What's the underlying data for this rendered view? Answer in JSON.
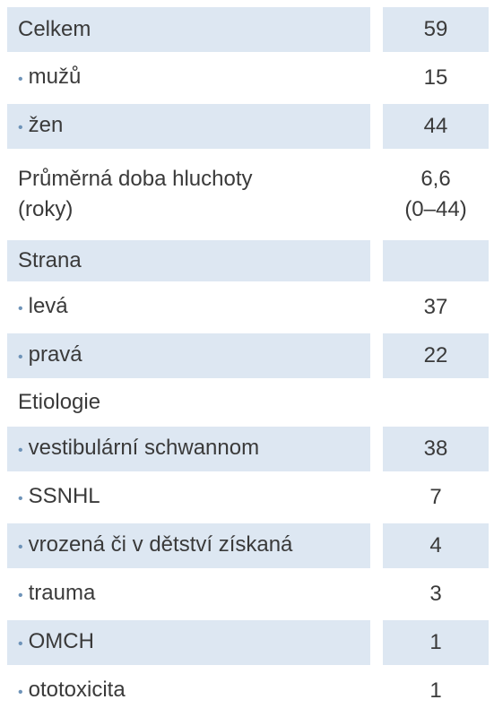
{
  "table": {
    "rows": [
      {
        "label": "Celkem",
        "value": "59",
        "shaded": true,
        "bullet": false
      },
      {
        "label": "mužů",
        "value": "15",
        "shaded": false,
        "bullet": true
      },
      {
        "label": "žen",
        "value": "44",
        "shaded": true,
        "bullet": true
      },
      {
        "label": "Průměrná doba hluchoty\n(roky)",
        "value": "6,6\n(0–44)",
        "shaded": false,
        "bullet": false
      },
      {
        "label": "Strana",
        "value": null,
        "shaded": true,
        "bullet": false
      },
      {
        "label": "levá",
        "value": "37",
        "shaded": false,
        "bullet": true
      },
      {
        "label": "pravá",
        "value": "22",
        "shaded": true,
        "bullet": true
      },
      {
        "label": "Etiologie",
        "value": null,
        "shaded": false,
        "bullet": false
      },
      {
        "label": "vestibulární schwannom",
        "value": "38",
        "shaded": true,
        "bullet": true
      },
      {
        "label": "SSNHL",
        "value": "7",
        "shaded": false,
        "bullet": true
      },
      {
        "label": "vrozená či v dětství získaná",
        "value": "4",
        "shaded": true,
        "bullet": true
      },
      {
        "label": "trauma",
        "value": "3",
        "shaded": false,
        "bullet": true
      },
      {
        "label": "OMCH",
        "value": "1",
        "shaded": true,
        "bullet": true
      },
      {
        "label": "ototoxicita",
        "value": "1",
        "shaded": false,
        "bullet": true
      }
    ]
  }
}
